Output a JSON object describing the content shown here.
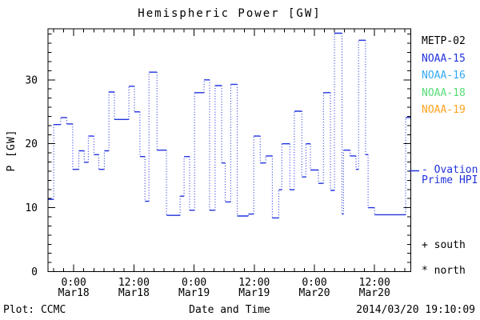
{
  "title": "Hemispheric Power [GW]",
  "y_axis": {
    "title": "P [GW]",
    "major_ticks": [
      0,
      10,
      20,
      30
    ],
    "range": [
      0,
      38
    ]
  },
  "x_axis": {
    "title": "Date and Time",
    "major_ticks": [
      {
        "hour": 0,
        "time": "0:00",
        "date": "Mar18"
      },
      {
        "hour": 12,
        "time": "12:00",
        "date": "Mar18"
      },
      {
        "hour": 24,
        "time": "0:00",
        "date": "Mar19"
      },
      {
        "hour": 36,
        "time": "12:00",
        "date": "Mar19"
      },
      {
        "hour": 48,
        "time": "0:00",
        "date": "Mar20"
      },
      {
        "hour": 60,
        "time": "12:00",
        "date": "Mar20"
      }
    ],
    "minor_tick_hours": 2,
    "range_hours": [
      -5.15,
      67.2
    ]
  },
  "legend": {
    "items": [
      {
        "label": "METP-02",
        "color": "#000000"
      },
      {
        "label": "NOAA-15",
        "color": "#2233dd"
      },
      {
        "label": "NOAA-16",
        "color": "#33aaee"
      },
      {
        "label": "NOAA-18",
        "color": "#55dd77"
      },
      {
        "label": "NOAA-19",
        "color": "#ffa320"
      }
    ]
  },
  "ovation": {
    "label_line1": "- Ovation",
    "label_line2": "Prime HPI",
    "color": "#2233dd"
  },
  "markers": {
    "south": "+ south",
    "north": "* north"
  },
  "footer": {
    "credit": "Plot: CCMC",
    "timestamp": "2014/03/20 19:10:09"
  },
  "chart_data": {
    "type": "line",
    "style": "step",
    "title": "Hemispheric Power [GW]",
    "xlabel": "Date and Time",
    "ylabel": "P [GW]",
    "ylim": [
      0,
      38
    ],
    "x_unit": "hours since 2014-03-18 00:00 UT",
    "grid": false,
    "legend_position": "right",
    "series": [
      {
        "name": "Ovation Prime HPI",
        "color": "#2233dd",
        "steps": [
          [
            -5.1,
            11.3
          ],
          [
            -4.0,
            23.0
          ],
          [
            -2.6,
            24.1
          ],
          [
            -1.4,
            23.1
          ],
          [
            -0.2,
            16.0
          ],
          [
            1.0,
            18.9
          ],
          [
            2.1,
            17.1
          ],
          [
            2.9,
            21.2
          ],
          [
            4.0,
            18.3
          ],
          [
            5.0,
            16.0
          ],
          [
            6.1,
            18.9
          ],
          [
            7.0,
            28.1
          ],
          [
            8.1,
            23.8
          ],
          [
            11.0,
            29.0
          ],
          [
            12.1,
            25.0
          ],
          [
            13.2,
            18.0
          ],
          [
            14.2,
            11.0
          ],
          [
            15.0,
            31.2
          ],
          [
            16.6,
            19.0
          ],
          [
            18.5,
            8.8
          ],
          [
            21.2,
            11.8
          ],
          [
            22.0,
            18.0
          ],
          [
            23.1,
            9.6
          ],
          [
            24.1,
            28.0
          ],
          [
            26.0,
            30.0
          ],
          [
            27.1,
            9.6
          ],
          [
            28.2,
            29.1
          ],
          [
            29.5,
            17.0
          ],
          [
            30.2,
            10.9
          ],
          [
            31.3,
            29.3
          ],
          [
            32.6,
            8.7
          ],
          [
            34.8,
            9.0
          ],
          [
            35.9,
            21.2
          ],
          [
            37.2,
            17.0
          ],
          [
            38.3,
            18.1
          ],
          [
            39.6,
            8.4
          ],
          [
            40.9,
            12.8
          ],
          [
            41.5,
            20.0
          ],
          [
            43.1,
            12.8
          ],
          [
            44.0,
            25.1
          ],
          [
            45.5,
            14.8
          ],
          [
            46.3,
            20.0
          ],
          [
            47.2,
            15.9
          ],
          [
            48.8,
            13.8
          ],
          [
            49.8,
            28.0
          ],
          [
            51.2,
            12.7
          ],
          [
            52.0,
            37.3
          ],
          [
            53.5,
            9.0
          ],
          [
            53.8,
            19.0
          ],
          [
            55.1,
            18.1
          ],
          [
            56.3,
            16.0
          ],
          [
            56.8,
            36.2
          ],
          [
            58.2,
            18.3
          ],
          [
            58.7,
            10.0
          ],
          [
            60.0,
            8.9
          ],
          [
            66.2,
            24.1
          ],
          [
            67.2,
            24.1
          ]
        ]
      }
    ]
  }
}
